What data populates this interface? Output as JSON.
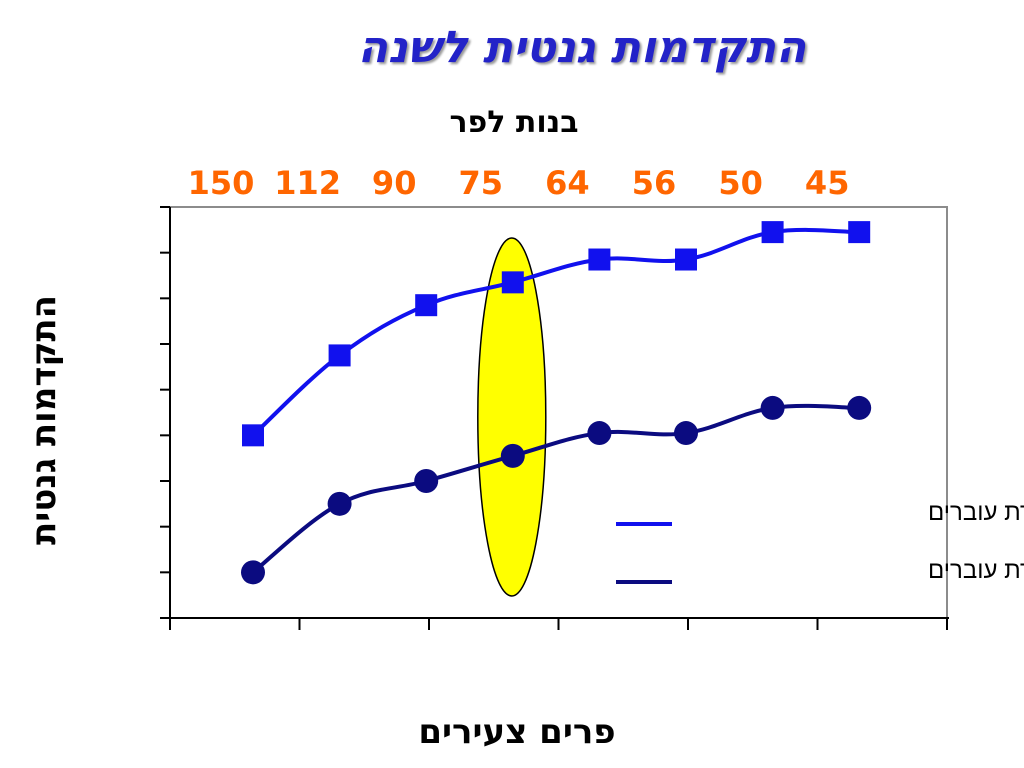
{
  "slide": {
    "title": "התקדמות גנטית לשנה"
  },
  "chart_data": {
    "type": "line",
    "top_axis_title": "בנות לפר",
    "top_axis_categories": [
      "150",
      "112",
      "90",
      "75",
      "64",
      "56",
      "50",
      "45"
    ],
    "xlabel": "פרים צעירים",
    "ylabel": "התקדמות גנטית",
    "y_tick_labels": "none",
    "x_tick_labels": "none",
    "grid": false,
    "plot_border": "gray",
    "series": [
      {
        "name": "כולל העברת עוברים",
        "color": "#1111ee",
        "marker": "square",
        "values": [
          4.0,
          5.75,
          6.85,
          7.35,
          7.85,
          7.85,
          8.45,
          8.45
        ]
      },
      {
        "name": "ללא העברת עוברים",
        "color": "#0b0b80",
        "marker": "circle",
        "values": [
          1.0,
          2.5,
          3.0,
          3.55,
          4.05,
          4.05,
          4.6,
          4.6
        ]
      }
    ],
    "ylim": [
      0,
      9
    ],
    "highlight": {
      "shape": "ellipse",
      "color": "#ffff00",
      "category": "75"
    },
    "legend_placement": "bottom-right"
  }
}
